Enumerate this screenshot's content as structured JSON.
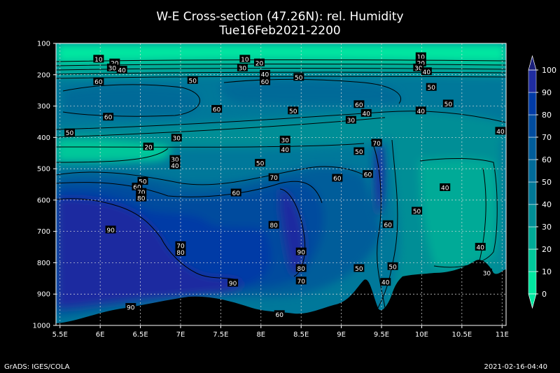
{
  "header": {
    "title": "W-E Cross-section (47.26N): rel. Humidity",
    "subtitle": "Tue16Feb2021-2200"
  },
  "footer": {
    "left": "GrADS: IGES/COLA",
    "right": "2021-02-16-04:40"
  },
  "chart_data": {
    "type": "heatmap",
    "title": "W-E Cross-section (47.26N): rel. Humidity",
    "subtitle": "Tue16Feb2021-2200",
    "x_ticks": [
      "5.5E",
      "6E",
      "6.5E",
      "7E",
      "7.5E",
      "8E",
      "8.5E",
      "9E",
      "9.5E",
      "10E",
      "10.5E",
      "11E"
    ],
    "x_values": [
      5.5,
      6,
      6.5,
      7,
      7.5,
      8,
      8.5,
      9,
      9.5,
      10,
      10.5,
      11
    ],
    "y_ticks": [
      "100",
      "200",
      "300",
      "400",
      "500",
      "600",
      "700",
      "800",
      "900",
      "1000"
    ],
    "y_values": [
      100,
      200,
      300,
      400,
      500,
      600,
      700,
      800,
      900,
      1000
    ],
    "xlim": [
      5.45,
      11.05
    ],
    "ylim": [
      1000,
      100
    ],
    "grid": true,
    "colorbar": {
      "levels": [
        0,
        10,
        20,
        30,
        40,
        50,
        60,
        70,
        80,
        90,
        100
      ],
      "labels": [
        "0",
        "10",
        "20",
        "30",
        "40",
        "50",
        "60",
        "70",
        "80",
        "90",
        "100"
      ],
      "colors": [
        "#00e7a0",
        "#00c89a",
        "#00aa97",
        "#008e96",
        "#007896",
        "#006b98",
        "#005d9a",
        "#004c9e",
        "#003ba6",
        "#1f2ca0"
      ],
      "placement": "right"
    },
    "contour_labels": [
      {
        "text": "10",
        "x": 5.98,
        "y": 150
      },
      {
        "text": "20",
        "x": 6.18,
        "y": 162
      },
      {
        "text": "30",
        "x": 6.15,
        "y": 178
      },
      {
        "text": "40",
        "x": 6.27,
        "y": 185
      },
      {
        "text": "60",
        "x": 5.98,
        "y": 222
      },
      {
        "text": "50",
        "x": 7.15,
        "y": 218
      },
      {
        "text": "60",
        "x": 8.05,
        "y": 222
      },
      {
        "text": "10",
        "x": 7.8,
        "y": 150
      },
      {
        "text": "20",
        "x": 7.98,
        "y": 162
      },
      {
        "text": "30",
        "x": 7.77,
        "y": 178
      },
      {
        "text": "40",
        "x": 8.05,
        "y": 198
      },
      {
        "text": "50",
        "x": 8.47,
        "y": 208
      },
      {
        "text": "10",
        "x": 9.99,
        "y": 142
      },
      {
        "text": "20",
        "x": 9.99,
        "y": 162
      },
      {
        "text": "30",
        "x": 9.96,
        "y": 178
      },
      {
        "text": "40",
        "x": 10.06,
        "y": 190
      },
      {
        "text": "50",
        "x": 10.12,
        "y": 240
      },
      {
        "text": "60",
        "x": 6.1,
        "y": 335
      },
      {
        "text": "60",
        "x": 7.45,
        "y": 310
      },
      {
        "text": "50",
        "x": 8.4,
        "y": 315
      },
      {
        "text": "60",
        "x": 9.22,
        "y": 295
      },
      {
        "text": "40",
        "x": 9.31,
        "y": 323
      },
      {
        "text": "30",
        "x": 9.12,
        "y": 345
      },
      {
        "text": "40",
        "x": 9.99,
        "y": 315
      },
      {
        "text": "50",
        "x": 10.33,
        "y": 293
      },
      {
        "text": "40",
        "x": 10.98,
        "y": 380
      },
      {
        "text": "50",
        "x": 5.62,
        "y": 385
      },
      {
        "text": "30",
        "x": 6.95,
        "y": 402
      },
      {
        "text": "30",
        "x": 8.3,
        "y": 408
      },
      {
        "text": "40",
        "x": 8.3,
        "y": 438
      },
      {
        "text": "20",
        "x": 6.6,
        "y": 430
      },
      {
        "text": "30",
        "x": 6.93,
        "y": 470
      },
      {
        "text": "40",
        "x": 6.93,
        "y": 490
      },
      {
        "text": "50",
        "x": 7.99,
        "y": 482
      },
      {
        "text": "70",
        "x": 9.44,
        "y": 418
      },
      {
        "text": "50",
        "x": 9.22,
        "y": 445
      },
      {
        "text": "60",
        "x": 9.33,
        "y": 518
      },
      {
        "text": "70",
        "x": 8.16,
        "y": 528
      },
      {
        "text": "60",
        "x": 8.95,
        "y": 530
      },
      {
        "text": "50",
        "x": 6.53,
        "y": 540
      },
      {
        "text": "60",
        "x": 6.46,
        "y": 558
      },
      {
        "text": "70",
        "x": 6.51,
        "y": 575
      },
      {
        "text": "80",
        "x": 6.51,
        "y": 593
      },
      {
        "text": "60",
        "x": 7.69,
        "y": 577
      },
      {
        "text": "40",
        "x": 10.29,
        "y": 560
      },
      {
        "text": "50",
        "x": 9.94,
        "y": 635
      },
      {
        "text": "80",
        "x": 8.16,
        "y": 680
      },
      {
        "text": "60",
        "x": 9.58,
        "y": 678
      },
      {
        "text": "90",
        "x": 6.13,
        "y": 695
      },
      {
        "text": "40",
        "x": 10.73,
        "y": 750
      },
      {
        "text": "70",
        "x": 7.0,
        "y": 745
      },
      {
        "text": "80",
        "x": 7.0,
        "y": 767
      },
      {
        "text": "90",
        "x": 8.5,
        "y": 765
      },
      {
        "text": "80",
        "x": 8.5,
        "y": 818
      },
      {
        "text": "70",
        "x": 8.5,
        "y": 858
      },
      {
        "text": "50",
        "x": 9.22,
        "y": 818
      },
      {
        "text": "50",
        "x": 9.64,
        "y": 812
      },
      {
        "text": "40",
        "x": 9.55,
        "y": 862
      },
      {
        "text": "30",
        "x": 10.81,
        "y": 832
      },
      {
        "text": "90",
        "x": 7.65,
        "y": 865
      },
      {
        "text": "90",
        "x": 6.38,
        "y": 942
      },
      {
        "text": "60",
        "x": 8.23,
        "y": 965
      }
    ]
  }
}
